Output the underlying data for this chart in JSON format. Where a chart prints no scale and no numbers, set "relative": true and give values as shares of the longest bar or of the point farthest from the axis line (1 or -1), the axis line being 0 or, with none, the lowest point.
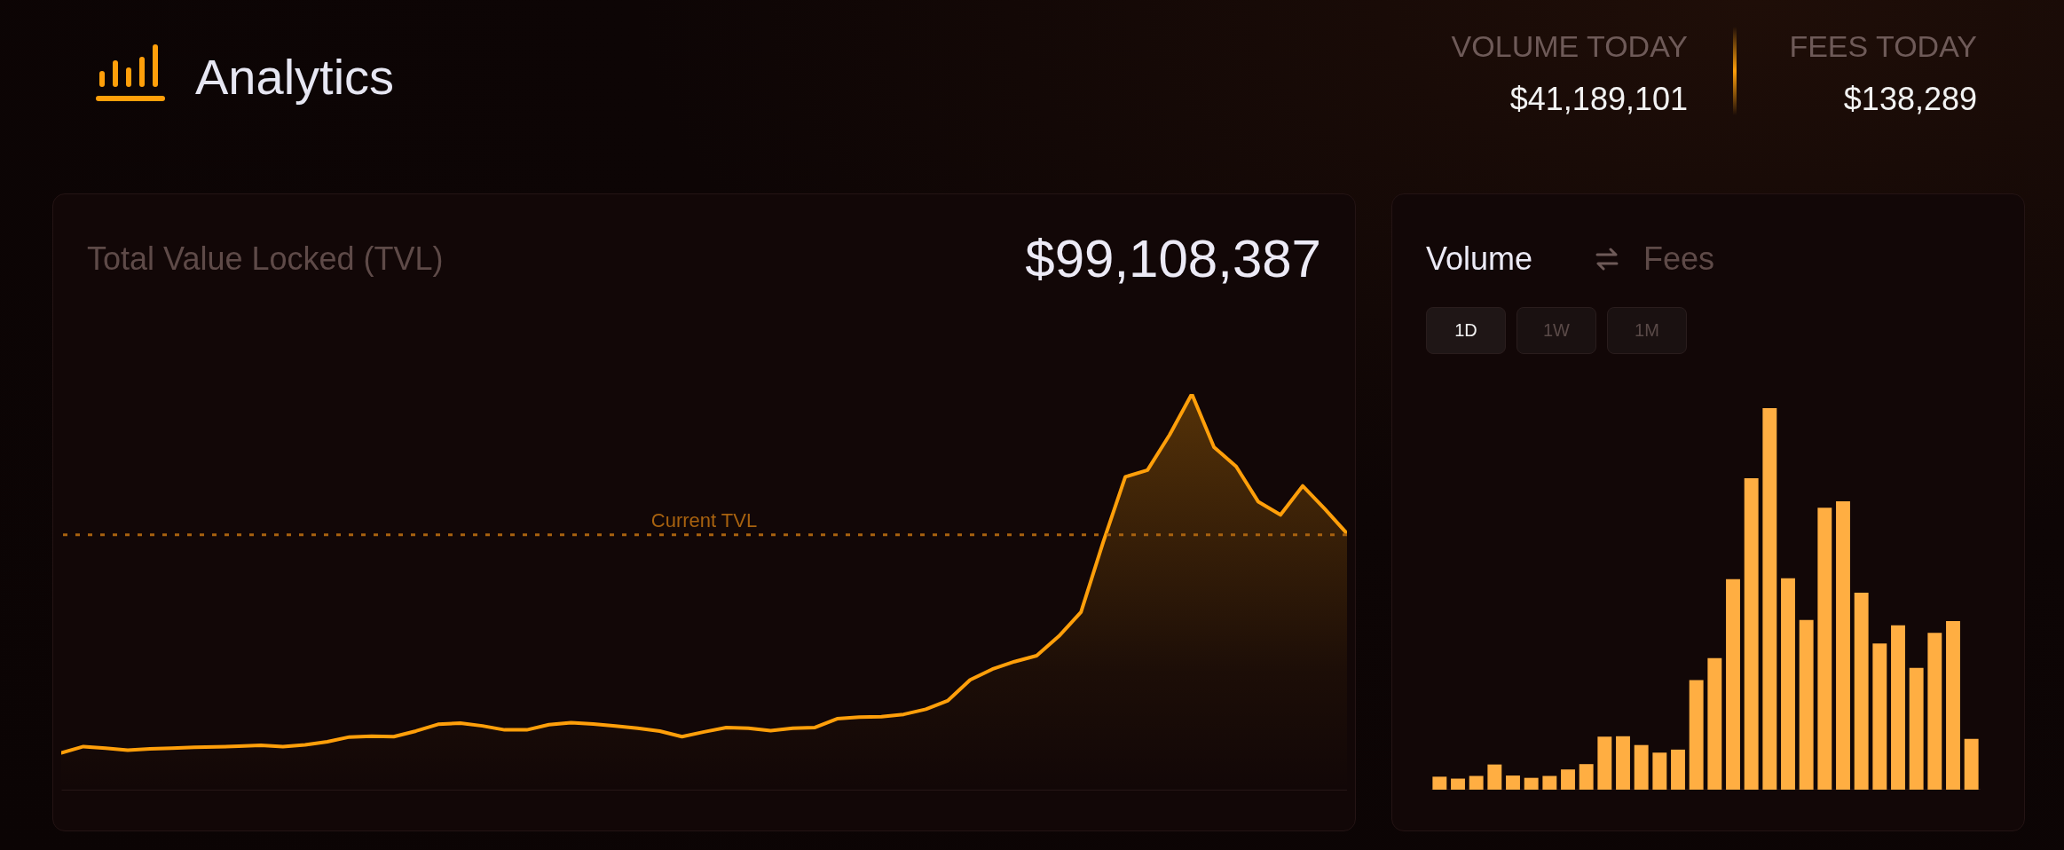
{
  "chart_data": [
    {
      "type": "other",
      "title": "Analytics",
      "annotations": [
        "VOLUME TODAY",
        "$41,189,101",
        "FEES TODAY",
        "$138,289"
      ]
    },
    {
      "type": "area",
      "title": "Total Value Locked (TVL)",
      "subtitle": "$99,108,387",
      "relative": true,
      "categories": [
        null,
        null,
        null,
        null,
        null,
        null,
        null,
        null,
        null,
        null,
        null,
        null,
        null,
        null,
        null,
        null,
        null,
        null,
        null,
        null,
        null,
        null,
        null,
        null,
        null,
        null,
        null,
        null,
        null,
        null,
        null,
        null,
        null,
        null,
        null,
        null,
        null,
        null,
        null,
        null,
        null,
        null,
        null,
        null,
        null,
        null,
        null,
        null,
        null,
        null,
        null,
        null,
        null,
        null,
        null,
        null,
        null,
        null,
        null
      ],
      "series": [
        {
          "color": "#ff9f0a",
          "values": [
            0.095,
            0.111,
            0.107,
            0.102,
            0.105,
            0.107,
            0.109,
            0.11,
            0.112,
            0.114,
            0.111,
            0.115,
            0.123,
            0.135,
            0.137,
            0.136,
            0.15,
            0.167,
            0.17,
            0.163,
            0.153,
            0.153,
            0.166,
            0.171,
            0.168,
            0.163,
            0.157,
            0.15,
            0.136,
            0.148,
            0.159,
            0.157,
            0.151,
            0.157,
            0.159,
            0.181,
            0.185,
            0.186,
            0.192,
            0.205,
            0.227,
            0.279,
            0.306,
            0.325,
            0.34,
            0.389,
            0.45,
            0.626,
            0.791,
            0.808,
            0.897,
            1,
            0.866,
            0.817,
            0.728,
            0.695,
            0.768,
            0.71,
            0.648
          ]
        }
      ],
      "ref_lines": [
        {
          "axis": "y",
          "value": 0.645,
          "label": "Current TVL",
          "color": "#a8620f",
          "line_style": "dashed"
        }
      ]
    },
    {
      "type": "bar",
      "title": "Volume",
      "annotations": [
        "Fees",
        "1D",
        "1W",
        "1M"
      ],
      "relative": true,
      "categories": [
        null,
        null,
        null,
        null,
        null,
        null,
        null,
        null,
        null,
        null,
        null,
        null,
        null,
        null,
        null,
        null,
        null,
        null,
        null,
        null,
        null,
        null,
        null,
        null,
        null,
        null,
        null,
        null,
        null,
        null
      ],
      "series": [
        {
          "color": "#ffae42",
          "values": [
            0.034,
            0.029,
            0.036,
            0.066,
            0.037,
            0.031,
            0.036,
            0.053,
            0.067,
            0.139,
            0.14,
            0.117,
            0.097,
            0.105,
            0.287,
            0.345,
            0.552,
            0.816,
            1,
            0.554,
            0.445,
            0.739,
            0.756,
            0.516,
            0.383,
            0.431,
            0.319,
            0.411,
            0.442,
            0.133
          ]
        }
      ]
    }
  ]
}
